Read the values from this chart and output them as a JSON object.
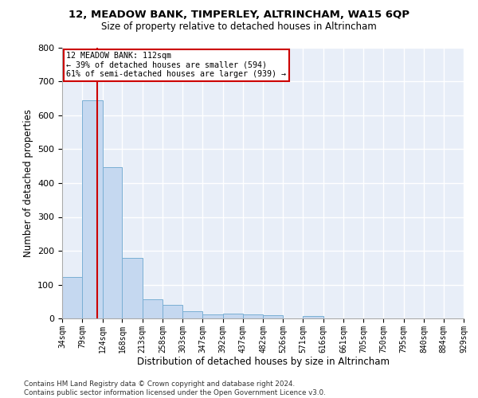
{
  "title": "12, MEADOW BANK, TIMPERLEY, ALTRINCHAM, WA15 6QP",
  "subtitle": "Size of property relative to detached houses in Altrincham",
  "xlabel": "Distribution of detached houses by size in Altrincham",
  "ylabel": "Number of detached properties",
  "bar_color": "#c5d8f0",
  "bar_edge_color": "#7aafd4",
  "background_color": "#e8eef8",
  "grid_color": "#ffffff",
  "annotation_box_color": "#cc0000",
  "annotation_line1": "12 MEADOW BANK: 112sqm",
  "annotation_line2": "← 39% of detached houses are smaller (594)",
  "annotation_line3": "61% of semi-detached houses are larger (939) →",
  "vline_x": 112,
  "vline_color": "#cc0000",
  "bin_edges": [
    34,
    79,
    124,
    168,
    213,
    258,
    303,
    347,
    392,
    437,
    482,
    526,
    571,
    616,
    661,
    705,
    750,
    795,
    840,
    884,
    929
  ],
  "bar_heights": [
    122,
    645,
    448,
    180,
    57,
    40,
    22,
    12,
    14,
    11,
    9,
    0,
    8,
    0,
    0,
    0,
    0,
    0,
    0,
    0
  ],
  "ylim": [
    0,
    800
  ],
  "yticks": [
    0,
    100,
    200,
    300,
    400,
    500,
    600,
    700,
    800
  ],
  "footnote": "Contains HM Land Registry data © Crown copyright and database right 2024.\nContains public sector information licensed under the Open Government Licence v3.0."
}
